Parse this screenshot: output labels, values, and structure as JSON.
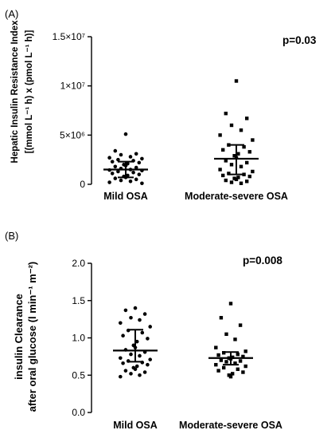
{
  "chart_data": [
    {
      "panel": "(A)",
      "type": "scatter",
      "ylabel_lines": [
        "Hepatic Insulin Resistance Index",
        "[(mmol L⁻¹ h) x (pmol L⁻¹ h)]"
      ],
      "ylim": [
        0,
        15000000
      ],
      "yticks": [
        {
          "value": 0,
          "label": "0"
        },
        {
          "value": 5000000,
          "label": "5×10⁶"
        },
        {
          "value": 10000000,
          "label": "1×10⁷"
        },
        {
          "value": 15000000,
          "label": "1.5×10⁷"
        }
      ],
      "categories": [
        "Mild OSA",
        "Moderate-severe OSA"
      ],
      "annotation": "p=0.03",
      "groups": [
        {
          "name": "Mild OSA",
          "marker": "circle",
          "mean": 1500000,
          "sd_low": 700000,
          "sd_high": 2300000,
          "values": [
            5100000,
            3400000,
            3100000,
            3000000,
            2800000,
            2700000,
            2600000,
            2500000,
            2400000,
            2300000,
            2200000,
            2100000,
            2000000,
            1900000,
            1800000,
            1700000,
            1600000,
            1500000,
            1450000,
            1400000,
            1300000,
            1200000,
            1100000,
            1000000,
            900000,
            800000,
            700000,
            600000,
            500000,
            400000,
            300000,
            200000,
            100000
          ]
        },
        {
          "name": "Moderate-severe OSA",
          "marker": "square",
          "mean": 2600000,
          "sd_low": 1000000,
          "sd_high": 4000000,
          "values": [
            10500000,
            7200000,
            6700000,
            6000000,
            5500000,
            5000000,
            4500000,
            4000000,
            3800000,
            3500000,
            3300000,
            3100000,
            2900000,
            2700000,
            2400000,
            2200000,
            2000000,
            1800000,
            1500000,
            1300000,
            1100000,
            1000000,
            900000,
            800000,
            700000,
            600000,
            500000,
            400000,
            300000,
            200000,
            100000
          ]
        }
      ]
    },
    {
      "panel": "(B)",
      "type": "scatter",
      "ylabel_lines": [
        "insulin Clearance",
        "after oral glucose (l min⁻¹ m⁻²)"
      ],
      "ylim": [
        0,
        2.0
      ],
      "yticks": [
        {
          "value": 0,
          "label": "0.0"
        },
        {
          "value": 0.5,
          "label": "0.5"
        },
        {
          "value": 1.0,
          "label": "1.0"
        },
        {
          "value": 1.5,
          "label": "1.5"
        },
        {
          "value": 2.0,
          "label": "2.0"
        }
      ],
      "categories": [
        "Mild OSA",
        "Moderate-severe OSA"
      ],
      "annotation": "p=0.008",
      "groups": [
        {
          "name": "Mild OSA",
          "marker": "circle",
          "mean": 0.83,
          "sd_low": 0.68,
          "sd_high": 1.11,
          "values": [
            1.4,
            1.37,
            1.32,
            1.27,
            1.24,
            1.2,
            1.15,
            1.1,
            1.07,
            1.03,
            0.99,
            0.95,
            0.9,
            0.87,
            0.84,
            0.81,
            0.78,
            0.76,
            0.73,
            0.71,
            0.69,
            0.67,
            0.66,
            0.64,
            0.62,
            0.6,
            0.58,
            0.56,
            0.54,
            0.52,
            0.5,
            0.48
          ]
        },
        {
          "name": "Moderate-severe OSA",
          "marker": "square",
          "mean": 0.73,
          "sd_low": 0.64,
          "sd_high": 0.81,
          "values": [
            1.46,
            1.27,
            1.17,
            1.05,
            0.98,
            0.87,
            0.82,
            0.8,
            0.78,
            0.77,
            0.75,
            0.74,
            0.73,
            0.72,
            0.7,
            0.69,
            0.68,
            0.66,
            0.64,
            0.62,
            0.6,
            0.58,
            0.56,
            0.54,
            0.52,
            0.5,
            0.48
          ]
        }
      ]
    }
  ]
}
